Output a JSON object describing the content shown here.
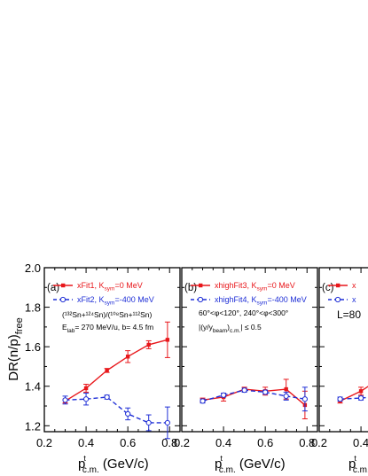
{
  "chart_data": [
    {
      "type": "line",
      "panel_label": "(a)",
      "xlim": [
        0.2,
        0.85
      ],
      "ylim": [
        1.17,
        2.0
      ],
      "x_ticks": [
        "0.2",
        "0.4",
        "0.6",
        "0.8"
      ],
      "y_ticks": [
        "1.2",
        "1.4",
        "1.6",
        "1.8",
        "2.0"
      ],
      "ylabel": {
        "main": "DR(n/p)",
        "sub": "free"
      },
      "xlabel": {
        "main": "p",
        "sup": "t",
        "sub": "c.m.",
        "unit": " (GeV/c)"
      },
      "series": [
        {
          "name": "xFit1, K",
          "name_sub": "sym",
          "name_tail": "=0 MeV",
          "color": "#e8171b",
          "style": "solid",
          "marker": "filled-square",
          "points": [
            {
              "x": 0.3,
              "y": 1.325,
              "err": 0.01
            },
            {
              "x": 0.4,
              "y": 1.39,
              "err": 0.02
            },
            {
              "x": 0.5,
              "y": 1.48,
              "err": 0.01
            },
            {
              "x": 0.6,
              "y": 1.55,
              "err": 0.03
            },
            {
              "x": 0.7,
              "y": 1.61,
              "err": 0.02
            },
            {
              "x": 0.79,
              "y": 1.635,
              "err": 0.09
            }
          ]
        },
        {
          "name": "xFit2, K",
          "name_sub": "sym",
          "name_tail": "=-400 MeV",
          "color": "#1f2fd6",
          "style": "dashed",
          "marker": "open-circle",
          "points": [
            {
              "x": 0.3,
              "y": 1.33,
              "err": 0.02
            },
            {
              "x": 0.4,
              "y": 1.335,
              "err": 0.03
            },
            {
              "x": 0.5,
              "y": 1.345,
              "err": 0.01
            },
            {
              "x": 0.6,
              "y": 1.26,
              "err": 0.03
            },
            {
              "x": 0.7,
              "y": 1.215,
              "err": 0.04
            },
            {
              "x": 0.79,
              "y": 1.215,
              "err": 0.08
            }
          ]
        }
      ],
      "annotations": [
        "(¹³²Sn+¹²⁴Sn)/(¹⁰⁸Sn+¹¹²Sn)",
        "E",
        "lab",
        "= 270 MeV/u, b= 4.5 fm"
      ]
    },
    {
      "type": "line",
      "panel_label": "(b)",
      "xlim": [
        0.2,
        0.85
      ],
      "ylim": [
        1.17,
        2.0
      ],
      "x_ticks": [
        "0.2",
        "0.4",
        "0.6",
        "0.8"
      ],
      "xlabel": {
        "main": "p",
        "sup": "t",
        "sub": "c.m.",
        "unit": " (GeV/c)"
      },
      "series": [
        {
          "name": "xhighFit3, K",
          "name_sub": "sym",
          "name_tail": "=0 MeV",
          "color": "#e8171b",
          "style": "solid",
          "marker": "filled-square",
          "points": [
            {
              "x": 0.3,
              "y": 1.33,
              "err": 0.01
            },
            {
              "x": 0.4,
              "y": 1.345,
              "err": 0.02
            },
            {
              "x": 0.5,
              "y": 1.385,
              "err": 0.01
            },
            {
              "x": 0.6,
              "y": 1.375,
              "err": 0.02
            },
            {
              "x": 0.7,
              "y": 1.385,
              "err": 0.05
            },
            {
              "x": 0.79,
              "y": 1.305,
              "err": 0.07
            }
          ]
        },
        {
          "name": "xhighFit4, K",
          "name_sub": "sym",
          "name_tail": "=-400 MeV",
          "color": "#1f2fd6",
          "style": "dashed",
          "marker": "open-circle",
          "points": [
            {
              "x": 0.3,
              "y": 1.325,
              "err": 0.01
            },
            {
              "x": 0.4,
              "y": 1.355,
              "err": 0.01
            },
            {
              "x": 0.5,
              "y": 1.38,
              "err": 0.01
            },
            {
              "x": 0.6,
              "y": 1.37,
              "err": 0.01
            },
            {
              "x": 0.7,
              "y": 1.35,
              "err": 0.02
            },
            {
              "x": 0.79,
              "y": 1.335,
              "err": 0.06
            }
          ]
        }
      ],
      "annotations": [
        "60°<φ<120°, 240°<φ<300°",
        "|(y/y",
        "beam",
        ")",
        "c.m.",
        "| ≤ 0.5"
      ]
    },
    {
      "type": "line",
      "panel_label": "(c)",
      "xlim": [
        0.2,
        0.85
      ],
      "ylim": [
        1.17,
        2.0
      ],
      "x_ticks": [
        "0.2",
        "0.4"
      ],
      "xlabel": {
        "main": "p",
        "sup": "t",
        "sub": "c.m."
      },
      "series": [
        {
          "name": "x",
          "color": "#e8171b",
          "style": "solid",
          "marker": "filled-square",
          "points": [
            {
              "x": 0.3,
              "y": 1.325,
              "err": 0.01
            },
            {
              "x": 0.4,
              "y": 1.375,
              "err": 0.02
            },
            {
              "x": 0.45,
              "y": 1.41,
              "err": 0.0
            }
          ]
        },
        {
          "name": "x",
          "color": "#1f2fd6",
          "style": "dashed",
          "marker": "open-circle",
          "points": [
            {
              "x": 0.3,
              "y": 1.335,
              "err": 0.01
            },
            {
              "x": 0.4,
              "y": 1.34,
              "err": 0.01
            },
            {
              "x": 0.45,
              "y": 1.345,
              "err": 0.0
            }
          ]
        }
      ],
      "annotations": [
        "L=80"
      ]
    }
  ]
}
